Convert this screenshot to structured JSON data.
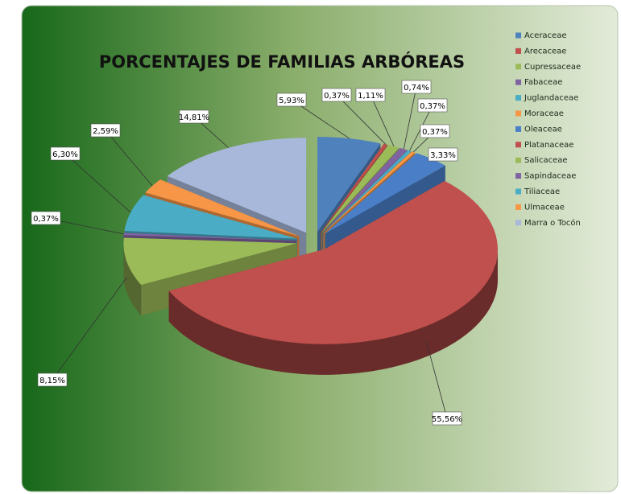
{
  "chart_data": {
    "type": "pie",
    "title": "PORCENTAJES DE FAMILIAS ARBÓREAS",
    "categories": [
      "Aceraceae",
      "Arecaceae",
      "Cupressaceae",
      "Fabaceae",
      "Juglandaceae",
      "Moraceae",
      "Oleaceae",
      "Platanaceae",
      "Salicaceae",
      "Sapindaceae",
      "Tiliaceae",
      "Ulmaceae",
      "Marra o Tocón"
    ],
    "values": [
      5.93,
      0.37,
      1.11,
      0.74,
      0.37,
      0.37,
      3.33,
      55.56,
      8.15,
      0.37,
      6.3,
      2.59,
      14.81
    ],
    "value_labels": [
      "5,93%",
      "0,37%",
      "1,11%",
      "0,74%",
      "0,37%",
      "0,37%",
      "3,33%",
      "55,56%",
      "8,15%",
      "0,37%",
      "6,30%",
      "2,59%",
      "14,81%"
    ],
    "colors": [
      "#4f81bd",
      "#c0504d",
      "#9bbb59",
      "#8064a2",
      "#4bacc6",
      "#f79646",
      "#4a7fc8",
      "#c0504d",
      "#9bbb59",
      "#8064a2",
      "#4bacc6",
      "#f79646",
      "#a7b8da"
    ],
    "legend": "right"
  }
}
